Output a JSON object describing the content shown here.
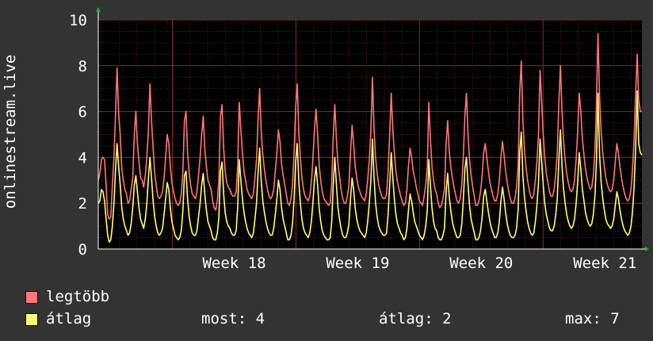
{
  "chart_data": {
    "type": "line",
    "ylabel": "onlinestream.live",
    "ylim": [
      0,
      10
    ],
    "yticks": [
      0,
      2,
      4,
      6,
      8,
      10
    ],
    "x_range_weeks": [
      17.4,
      21.8
    ],
    "xticks": [
      {
        "label": "Week 18",
        "week": 18
      },
      {
        "label": "Week 19",
        "week": 19
      },
      {
        "label": "Week 20",
        "week": 20
      },
      {
        "label": "Week 21",
        "week": 21
      }
    ],
    "grid": true,
    "background": "#000000",
    "colors": {
      "max": "#ff7777",
      "avg": "#ffff77",
      "grid": "#5a2020",
      "major_grid": "#8a2a2a"
    },
    "series": [
      {
        "name": "legtöbb",
        "color": "#ff7777",
        "values": [
          3.0,
          3.3,
          3.9,
          4.0,
          3.9,
          2.8,
          1.5,
          1.3,
          1.4,
          2.8,
          4.0,
          5.8,
          7.9,
          5.9,
          5.0,
          3.5,
          3.0,
          2.6,
          2.4,
          2.0,
          2.1,
          2.6,
          3.1,
          5.0,
          6.0,
          4.6,
          3.8,
          3.1,
          3.0,
          2.7,
          3.2,
          4.0,
          5.2,
          7.2,
          5.6,
          4.4,
          3.3,
          2.8,
          2.3,
          2.2,
          2.3,
          2.5,
          3.1,
          4.0,
          5.0,
          4.6,
          3.6,
          2.9,
          2.5,
          2.2,
          2.0,
          1.9,
          2.0,
          2.4,
          3.4,
          5.6,
          6.0,
          4.2,
          3.3,
          2.8,
          2.4,
          2.3,
          2.2,
          2.5,
          3.2,
          4.0,
          5.0,
          5.8,
          4.4,
          3.6,
          3.0,
          2.8,
          2.6,
          2.1,
          1.8,
          1.7,
          2.1,
          3.0,
          5.8,
          6.3,
          4.4,
          3.4,
          2.9,
          2.7,
          2.6,
          2.4,
          2.3,
          2.3,
          2.5,
          3.6,
          6.4,
          5.2,
          4.2,
          3.4,
          3.0,
          2.6,
          2.4,
          2.3,
          2.2,
          2.4,
          3.1,
          3.9,
          5.6,
          7.0,
          5.2,
          4.1,
          3.5,
          3.0,
          2.6,
          2.3,
          2.2,
          2.3,
          2.6,
          3.4,
          4.2,
          5.2,
          4.7,
          3.7,
          3.2,
          2.8,
          2.4,
          2.0,
          1.9,
          2.2,
          2.8,
          4.2,
          6.2,
          7.2,
          5.1,
          4.0,
          3.1,
          2.6,
          2.3,
          2.2,
          2.1,
          2.3,
          2.9,
          3.9,
          5.2,
          6.1,
          5.0,
          3.7,
          3.0,
          2.5,
          2.2,
          2.1,
          2.0,
          1.9,
          2.0,
          2.9,
          4.9,
          6.3,
          4.8,
          3.7,
          3.2,
          2.6,
          2.2,
          2.0,
          2.0,
          2.3,
          2.8,
          4.2,
          5.4,
          4.6,
          3.6,
          3.1,
          2.7,
          2.5,
          2.3,
          2.2,
          2.1,
          2.4,
          3.0,
          3.9,
          5.2,
          7.5,
          5.3,
          4.0,
          3.3,
          2.8,
          2.5,
          2.3,
          2.2,
          2.2,
          2.4,
          3.4,
          5.0,
          6.8,
          5.2,
          4.2,
          3.4,
          2.9,
          2.6,
          2.3,
          2.1,
          1.9,
          2.0,
          2.6,
          3.6,
          4.4,
          4.0,
          3.4,
          3.1,
          2.7,
          2.4,
          2.1,
          2.0,
          1.9,
          2.3,
          2.8,
          3.6,
          6.4,
          4.8,
          3.6,
          3.0,
          2.6,
          2.4,
          2.0,
          1.8,
          1.9,
          2.2,
          2.6,
          4.6,
          5.6,
          4.3,
          3.6,
          3.1,
          2.7,
          2.4,
          2.1,
          2.0,
          2.2,
          2.8,
          4.0,
          5.8,
          6.8,
          5.0,
          3.9,
          3.2,
          2.7,
          2.3,
          1.9,
          1.9,
          2.1,
          2.5,
          3.2,
          4.2,
          4.6,
          4.0,
          3.4,
          2.9,
          2.6,
          2.3,
          2.1,
          2.1,
          2.4,
          3.0,
          4.0,
          4.7,
          4.1,
          3.4,
          2.9,
          2.5,
          2.2,
          2.0,
          2.0,
          2.2,
          2.7,
          3.6,
          6.8,
          8.2,
          5.6,
          4.4,
          3.6,
          3.0,
          2.6,
          2.3,
          2.2,
          2.4,
          3.0,
          3.8,
          5.0,
          7.8,
          6.4,
          5.0,
          4.0,
          3.3,
          2.9,
          2.5,
          2.3,
          2.3,
          2.6,
          3.3,
          4.2,
          6.4,
          8.0,
          6.0,
          4.7,
          3.9,
          3.3,
          2.9,
          2.6,
          2.5,
          2.6,
          3.0,
          3.9,
          5.1,
          6.8,
          6.0,
          4.8,
          4.1,
          3.5,
          3.1,
          2.8,
          2.6,
          2.7,
          3.2,
          4.3,
          6.4,
          9.4,
          6.6,
          5.1,
          4.2,
          3.6,
          3.1,
          2.8,
          2.6,
          2.5,
          2.6,
          3.0,
          3.8,
          4.6,
          4.2,
          3.6,
          3.1,
          2.7,
          2.4,
          2.2,
          2.1,
          2.2,
          2.6,
          3.4,
          4.8,
          6.8,
          8.5,
          6.5,
          6.0,
          6.0
        ]
      },
      {
        "name": "átlag",
        "color": "#ffff77",
        "values": [
          2.0,
          2.1,
          2.6,
          2.5,
          2.1,
          1.3,
          0.6,
          0.3,
          0.4,
          1.0,
          2.0,
          3.4,
          4.6,
          3.6,
          2.8,
          1.8,
          1.3,
          1.0,
          0.8,
          0.6,
          0.7,
          1.1,
          1.8,
          2.8,
          3.2,
          2.5,
          1.8,
          1.3,
          1.1,
          0.9,
          1.3,
          2.0,
          3.1,
          4.0,
          3.1,
          2.1,
          1.4,
          1.0,
          0.7,
          0.6,
          0.7,
          0.9,
          1.5,
          2.2,
          2.9,
          2.6,
          1.8,
          1.2,
          0.9,
          0.6,
          0.5,
          0.4,
          0.5,
          0.8,
          1.7,
          3.2,
          3.4,
          2.2,
          1.4,
          1.0,
          0.7,
          0.6,
          0.6,
          0.8,
          1.4,
          2.0,
          2.8,
          3.3,
          2.4,
          1.7,
          1.2,
          1.0,
          0.8,
          0.5,
          0.4,
          0.4,
          0.7,
          1.4,
          3.4,
          3.8,
          2.4,
          1.6,
          1.2,
          1.0,
          0.9,
          0.7,
          0.6,
          0.6,
          0.8,
          1.8,
          3.9,
          3.0,
          2.2,
          1.6,
          1.2,
          0.9,
          0.7,
          0.6,
          0.5,
          0.7,
          1.3,
          2.0,
          3.3,
          4.4,
          3.0,
          2.1,
          1.6,
          1.2,
          0.9,
          0.7,
          0.6,
          0.6,
          0.9,
          1.5,
          2.2,
          3.0,
          2.6,
          1.8,
          1.3,
          1.0,
          0.7,
          0.4,
          0.4,
          0.6,
          1.1,
          2.2,
          3.8,
          4.6,
          3.0,
          2.0,
          1.3,
          0.9,
          0.7,
          0.6,
          0.5,
          0.7,
          1.2,
          2.0,
          3.0,
          3.6,
          2.8,
          1.8,
          1.2,
          0.8,
          0.6,
          0.5,
          0.4,
          0.4,
          0.5,
          1.2,
          2.8,
          4.0,
          2.8,
          1.8,
          1.3,
          0.9,
          0.6,
          0.5,
          0.5,
          0.7,
          1.1,
          2.2,
          3.1,
          2.6,
          1.8,
          1.3,
          1.0,
          0.8,
          0.7,
          0.6,
          0.5,
          0.7,
          1.2,
          2.0,
          3.0,
          4.8,
          3.2,
          2.0,
          1.4,
          1.0,
          0.8,
          0.7,
          0.6,
          0.6,
          0.7,
          1.5,
          2.8,
          4.2,
          3.1,
          2.2,
          1.5,
          1.1,
          0.9,
          0.7,
          0.6,
          0.4,
          0.5,
          0.9,
          1.7,
          2.4,
          2.1,
          1.6,
          1.2,
          1.0,
          0.8,
          0.6,
          0.5,
          0.4,
          0.6,
          1.0,
          1.7,
          3.9,
          2.8,
          1.8,
          1.2,
          0.9,
          0.8,
          0.5,
          0.4,
          0.4,
          0.6,
          0.9,
          2.5,
          3.3,
          2.3,
          1.7,
          1.2,
          0.9,
          0.7,
          0.5,
          0.5,
          0.6,
          1.1,
          2.1,
          3.5,
          4.0,
          2.8,
          1.9,
          1.3,
          1.0,
          0.7,
          0.4,
          0.4,
          0.5,
          0.8,
          1.4,
          2.3,
          2.6,
          2.1,
          1.6,
          1.2,
          0.9,
          0.7,
          0.5,
          0.5,
          0.7,
          1.2,
          2.1,
          2.7,
          2.2,
          1.6,
          1.1,
          0.8,
          0.6,
          0.5,
          0.5,
          0.6,
          0.9,
          1.7,
          4.2,
          5.1,
          3.2,
          2.3,
          1.7,
          1.2,
          0.9,
          0.7,
          0.6,
          0.7,
          1.2,
          1.9,
          2.9,
          4.8,
          3.8,
          2.8,
          2.0,
          1.5,
          1.2,
          0.9,
          0.8,
          0.8,
          1.0,
          1.5,
          2.2,
          3.9,
          5.2,
          3.6,
          2.6,
          2.0,
          1.5,
          1.2,
          1.0,
          0.9,
          1.0,
          1.3,
          2.0,
          2.9,
          4.2,
          3.5,
          2.6,
          2.1,
          1.6,
          1.3,
          1.1,
          1.0,
          1.1,
          1.5,
          2.3,
          3.9,
          6.8,
          4.1,
          2.9,
          2.2,
          1.7,
          1.3,
          1.1,
          1.0,
          0.9,
          1.0,
          1.3,
          1.9,
          2.5,
          2.2,
          1.7,
          1.3,
          1.0,
          0.8,
          0.7,
          0.6,
          0.7,
          1.0,
          1.6,
          2.7,
          4.4,
          6.9,
          4.6,
          4.2,
          4.1
        ]
      }
    ]
  },
  "legend": {
    "items": [
      {
        "label": "legtöbb",
        "color": "#ff7777"
      },
      {
        "label": "átlag",
        "color": "#ffff77"
      }
    ],
    "stats": {
      "most": "most: 4",
      "atlag": "átlag: 2",
      "max": "max: 7"
    }
  }
}
